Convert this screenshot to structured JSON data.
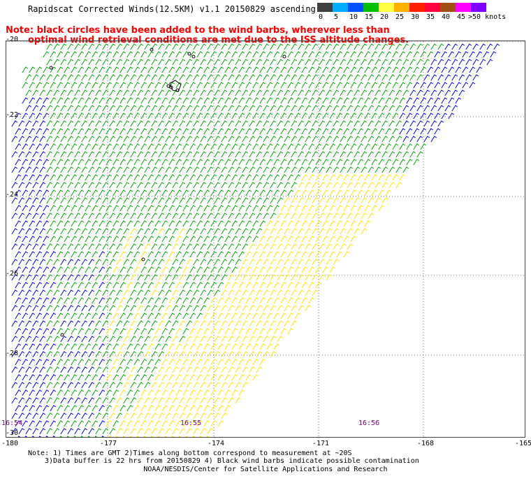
{
  "title": "Rapidscat Corrected Winds(12.5KM) v1.1 20150829 ascending",
  "note_line1": "Note: black circles have been added to the wind barbs, wherever less than",
  "note_line2": "optimal wind retrieval conditions are met due to the ISS altitude changes.",
  "legend": {
    "labels": [
      "0",
      "5",
      "10",
      "15",
      "20",
      "25",
      "30",
      "35",
      "40",
      "45",
      ">50 knots"
    ],
    "colors": [
      "#404040",
      "#00aaff",
      "#0050ff",
      "#00c000",
      "#ffff44",
      "#ffb000",
      "#ff2000",
      "#ff0040",
      "#a05010",
      "#ff00ff",
      "#8000ff"
    ]
  },
  "y_labels": [
    "-20",
    "-22",
    "-24",
    "-26",
    "-28",
    "-30"
  ],
  "x_labels": [
    "-180",
    "-177",
    "-174",
    "-171",
    "-168",
    "-165"
  ],
  "times": [
    "16:54",
    "16:55",
    "16:56"
  ],
  "bottom_note1": "Note: 1) Times are GMT 2)Times along bottom correspond to measurement at ~20S",
  "bottom_note2": "3)Data buffer is 22 hrs from 20150829 4) Black wind barbs indicate possible contamination",
  "credit": "NOAA/NESDIS/Center for Satellite Applications and Research",
  "map": {
    "lat_range": [
      -30,
      -20
    ],
    "lon_range": [
      -180,
      -165
    ],
    "barb_colors": {
      "calm": "#0000ff",
      "moderate": "#00aa00",
      "strong": "#ffe800"
    }
  }
}
